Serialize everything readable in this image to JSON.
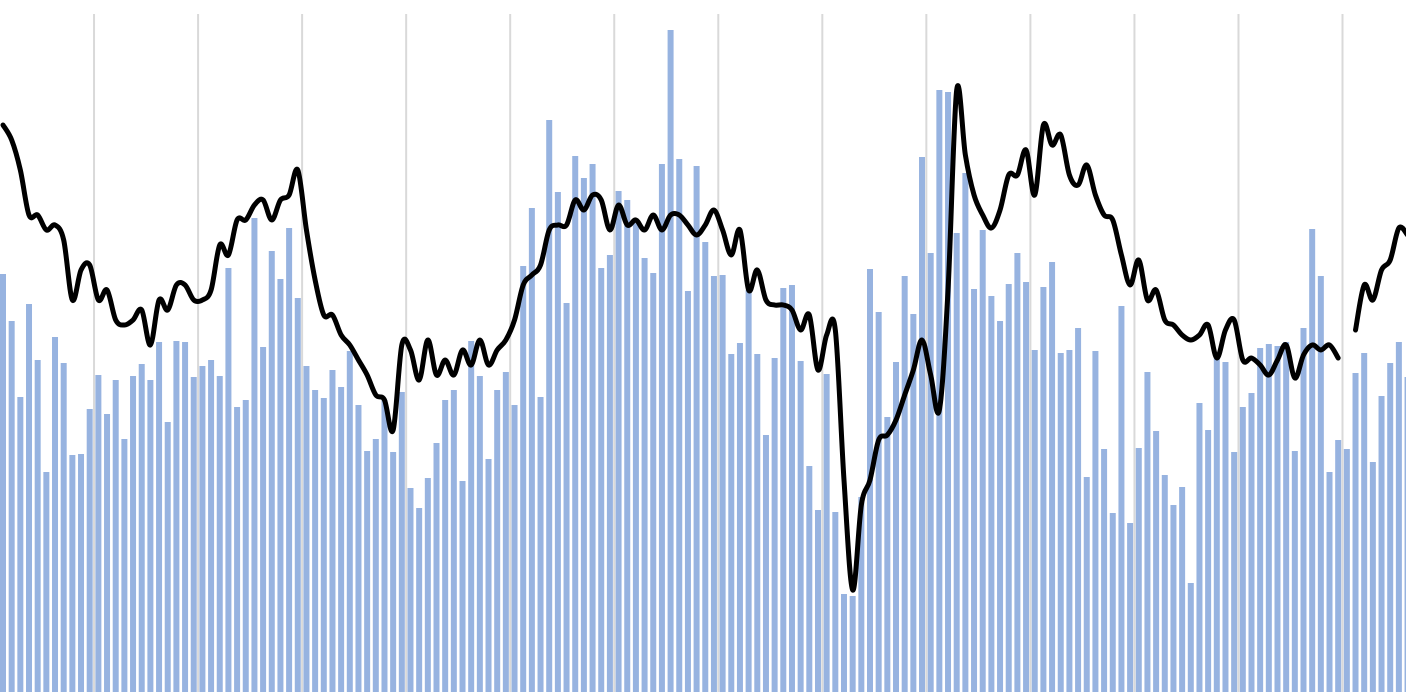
{
  "chart_data": {
    "type": "combo",
    "ylim": [
      0,
      692
    ],
    "grid": true,
    "series": [
      {
        "type": "bar",
        "color": "#97b3e0",
        "values": [
          418,
          371,
          295,
          388,
          332,
          220,
          355,
          329,
          237,
          238,
          283,
          317,
          278,
          312,
          253,
          316,
          328,
          312,
          350,
          270,
          351,
          350,
          315,
          326,
          332,
          316,
          424,
          285,
          292,
          474,
          345,
          441,
          413,
          464,
          394,
          326,
          302,
          294,
          322,
          305,
          341,
          287,
          241,
          253,
          292,
          240,
          300,
          204,
          184,
          214,
          249,
          292,
          302,
          211,
          351,
          316,
          233,
          302,
          320,
          287,
          426,
          484,
          295,
          572,
          500,
          389,
          536,
          514,
          528,
          424,
          437,
          501,
          492,
          471,
          434,
          419,
          528,
          662,
          533,
          401,
          526,
          450,
          416,
          417,
          338,
          349,
          402,
          338,
          257,
          334,
          404,
          407,
          331,
          226,
          182,
          318,
          180,
          98,
          96,
          195,
          423,
          380,
          275,
          330,
          416,
          378,
          535,
          439,
          602,
          600,
          459,
          519,
          403,
          462,
          396,
          371,
          408,
          439,
          410,
          342,
          405,
          430,
          339,
          342,
          364,
          215,
          341,
          243,
          179,
          386,
          169,
          244,
          320,
          261,
          217,
          187,
          205,
          109,
          289,
          262,
          337,
          330,
          240,
          285,
          299,
          344,
          348,
          346,
          350,
          241,
          364,
          463,
          416,
          220,
          252,
          243,
          319,
          339,
          230,
          296,
          329,
          350,
          315
        ]
      },
      {
        "type": "line",
        "color": "#000000",
        "values": [
          567,
          552,
          522,
          477,
          477,
          462,
          467,
          452,
          392,
          422,
          427,
          392,
          402,
          372,
          367,
          372,
          382,
          347,
          392,
          382,
          407,
          407,
          392,
          392,
          402,
          447,
          437,
          472,
          472,
          487,
          492,
          472,
          492,
          497,
          522,
          462,
          412,
          377,
          377,
          357,
          347,
          332,
          317,
          297,
          292,
          262,
          347,
          342,
          312,
          352,
          317,
          332,
          317,
          342,
          327,
          352,
          327,
          342,
          352,
          372,
          407,
          417,
          427,
          462,
          467,
          467,
          492,
          482,
          497,
          492,
          462,
          487,
          467,
          472,
          462,
          477,
          462,
          477,
          477,
          467,
          457,
          467,
          482,
          462,
          437,
          462,
          402,
          422,
          392,
          387,
          387,
          382,
          362,
          377,
          322,
          357,
          362,
          212,
          102,
          187,
          212,
          252,
          257,
          272,
          297,
          322,
          352,
          317,
          282,
          402,
          602,
          537,
          497,
          477,
          464,
          482,
          517,
          517,
          542,
          497,
          567,
          547,
          557,
          517,
          507,
          527,
          497,
          477,
          472,
          437,
          407,
          432,
          392,
          402,
          372,
          367,
          357,
          352,
          357,
          367,
          334,
          362,
          372,
          332,
          334,
          327,
          317,
          332,
          347,
          314,
          337,
          347,
          342,
          347,
          334,
          null,
          362,
          407,
          392,
          422,
          432,
          464,
          457
        ]
      }
    ]
  }
}
